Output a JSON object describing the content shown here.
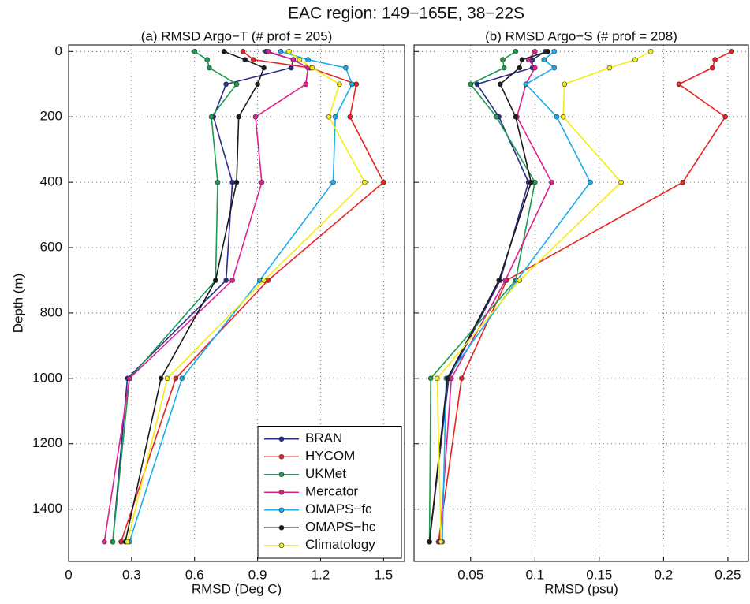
{
  "title": "EAC region: 149−165E, 38−22S",
  "chart_data": [
    {
      "type": "line",
      "title": "(a) RMSD Argo−T (# prof = 205)",
      "x_label": "RMSD (Deg C)",
      "y_label": "Depth (m)",
      "y": [
        0,
        25,
        50,
        100,
        200,
        400,
        700,
        1000,
        1500
      ],
      "xlim": [
        0,
        1.6
      ],
      "xticks": [
        0,
        0.3,
        0.6,
        0.9,
        1.2,
        1.5
      ],
      "ylim": [
        -20,
        1560
      ],
      "yticks": [
        0,
        200,
        400,
        600,
        800,
        1000,
        1200,
        1400
      ],
      "y_reversed": true,
      "grid": true,
      "legend": "lower right",
      "series": [
        {
          "name": "BRAN",
          "color": "#2b2b8c",
          "values": [
            0.94,
            1.07,
            1.06,
            0.75,
            0.69,
            0.78,
            0.75,
            0.28,
            0.21
          ]
        },
        {
          "name": "HYCOM",
          "color": "#e8231f",
          "values": [
            0.83,
            0.88,
            1.15,
            1.37,
            1.34,
            1.5,
            0.95,
            0.51,
            0.25
          ]
        },
        {
          "name": "UKMet",
          "color": "#1a9c50",
          "values": [
            0.6,
            0.66,
            0.67,
            0.8,
            0.68,
            0.71,
            0.7,
            0.29,
            0.21
          ]
        },
        {
          "name": "Mercator",
          "color": "#e0208f",
          "values": [
            0.95,
            1.07,
            1.14,
            1.13,
            0.89,
            0.92,
            0.78,
            0.29,
            0.17
          ]
        },
        {
          "name": "OMAPS−fc",
          "color": "#1aacea",
          "values": [
            1.01,
            1.14,
            1.32,
            1.35,
            1.27,
            1.26,
            0.91,
            0.54,
            0.29
          ]
        },
        {
          "name": "OMAPS−hc",
          "color": "#1a1a1a",
          "values": [
            0.74,
            0.84,
            0.93,
            0.9,
            0.81,
            0.8,
            0.7,
            0.44,
            0.27
          ]
        },
        {
          "name": "Climatology",
          "color": "#f5ec12",
          "values": [
            1.05,
            1.1,
            1.16,
            1.29,
            1.24,
            1.41,
            0.93,
            0.47,
            0.28
          ]
        }
      ]
    },
    {
      "type": "line",
      "title": "(b) RMSD Argo−S (# prof = 208)",
      "x_label": "RMSD (psu)",
      "y": [
        0,
        25,
        50,
        100,
        200,
        400,
        700,
        1000,
        1500
      ],
      "xlim": [
        0.006,
        0.266
      ],
      "xticks": [
        0.05,
        0.1,
        0.15,
        0.2,
        0.25
      ],
      "ylim": [
        -20,
        1560
      ],
      "yticks": [
        0,
        200,
        400,
        600,
        800,
        1000,
        1200,
        1400
      ],
      "y_reversed": true,
      "ytick_labels": false,
      "grid": true,
      "series": [
        {
          "name": "BRAN",
          "color": "#2b2b8c",
          "values": [
            0.108,
            0.098,
            0.098,
            0.055,
            0.072,
            0.095,
            0.073,
            0.033,
            0.018
          ]
        },
        {
          "name": "HYCOM",
          "color": "#e8231f",
          "values": [
            0.253,
            0.24,
            0.238,
            0.212,
            0.248,
            0.215,
            0.078,
            0.043,
            0.025
          ]
        },
        {
          "name": "UKMet",
          "color": "#1a9c50",
          "values": [
            0.085,
            0.075,
            0.076,
            0.05,
            0.07,
            0.1,
            0.085,
            0.019,
            0.018
          ]
        },
        {
          "name": "Mercator",
          "color": "#e0208f",
          "values": [
            0.1,
            0.095,
            0.1,
            0.093,
            0.086,
            0.113,
            0.077,
            0.035,
            0.026
          ]
        },
        {
          "name": "OMAPS−fc",
          "color": "#1aacea",
          "values": [
            0.115,
            0.107,
            0.115,
            0.093,
            0.117,
            0.143,
            0.086,
            0.031,
            0.028
          ]
        },
        {
          "name": "OMAPS−hc",
          "color": "#1a1a1a",
          "values": [
            0.11,
            0.09,
            0.088,
            0.073,
            0.085,
            0.097,
            0.072,
            0.032,
            0.018
          ]
        },
        {
          "name": "Climatology",
          "color": "#f5ec12",
          "values": [
            0.19,
            0.178,
            0.158,
            0.123,
            0.122,
            0.167,
            0.088,
            0.024,
            0.027
          ]
        }
      ]
    }
  ]
}
